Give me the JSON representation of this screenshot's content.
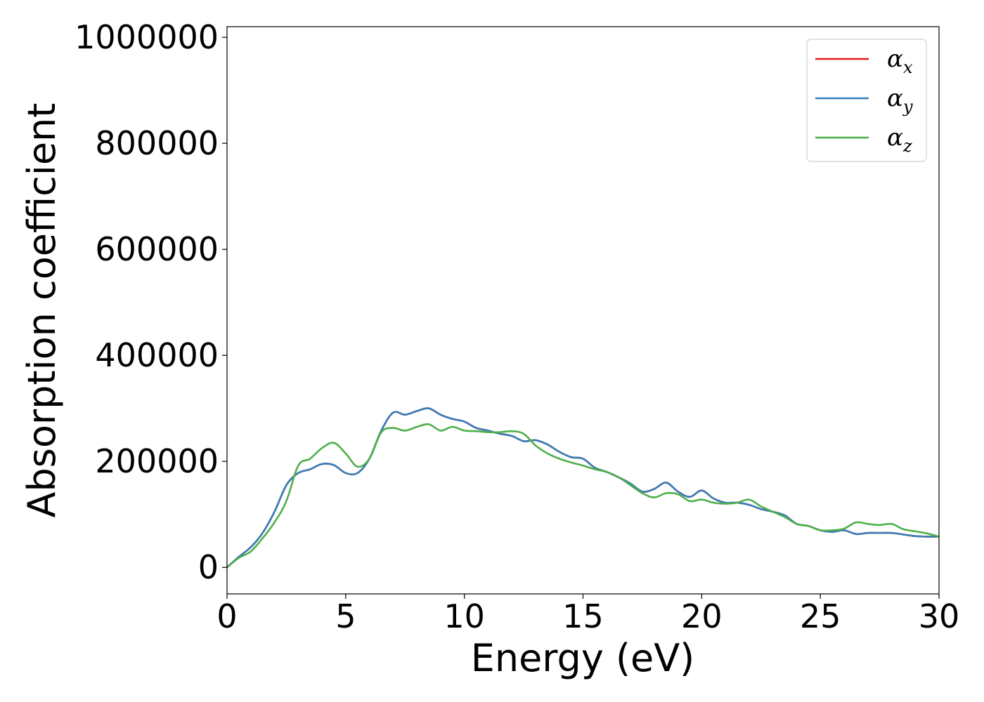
{
  "chart_data": {
    "type": "line",
    "xlabel": "Energy (eV)",
    "ylabel": "Absorption coefficient",
    "xlim": [
      0,
      30
    ],
    "ylim": [
      -50000,
      1020000
    ],
    "xticks": [
      0,
      5,
      10,
      15,
      20,
      25,
      30
    ],
    "yticks": [
      0,
      200000,
      400000,
      600000,
      800000,
      1000000
    ],
    "xtick_labels": [
      "0",
      "5",
      "10",
      "15",
      "20",
      "25",
      "30"
    ],
    "ytick_labels": [
      "0",
      "200000",
      "400000",
      "600000",
      "800000",
      "1000000"
    ],
    "grid": false,
    "legend_position": "top-right",
    "x": [
      0,
      0.5,
      1.0,
      1.5,
      2.0,
      2.5,
      3.0,
      3.5,
      4.0,
      4.5,
      5.0,
      5.5,
      6.0,
      6.5,
      7.0,
      7.5,
      8.0,
      8.5,
      9.0,
      9.5,
      10.0,
      10.5,
      11.0,
      11.5,
      12.0,
      12.5,
      13.0,
      13.5,
      14.0,
      14.5,
      15.0,
      15.5,
      16.0,
      16.5,
      17.0,
      17.5,
      18.0,
      18.5,
      19.0,
      19.5,
      20.0,
      20.5,
      21.0,
      21.5,
      22.0,
      22.5,
      23.0,
      23.5,
      24.0,
      24.5,
      25.0,
      25.5,
      26.0,
      26.5,
      27.0,
      27.5,
      28.0,
      28.5,
      29.0,
      29.5,
      30.0
    ],
    "series": [
      {
        "name": "x",
        "color": "#e41a1c",
        "values": [
          0,
          20000,
          38000,
          65000,
          105000,
          155000,
          178000,
          185000,
          195000,
          193000,
          178000,
          178000,
          205000,
          258000,
          292000,
          288000,
          295000,
          300000,
          288000,
          280000,
          275000,
          263000,
          258000,
          252000,
          248000,
          238000,
          240000,
          232000,
          218000,
          208000,
          205000,
          188000,
          180000,
          170000,
          158000,
          143000,
          148000,
          160000,
          143000,
          133000,
          145000,
          130000,
          122000,
          122000,
          118000,
          110000,
          105000,
          98000,
          82000,
          78000,
          70000,
          67000,
          70000,
          63000,
          65000,
          65000,
          65000,
          62000,
          59000,
          58000,
          58000
        ]
      },
      {
        "name": "y",
        "color": "#377eb8",
        "values": [
          0,
          20000,
          38000,
          65000,
          105000,
          155000,
          178000,
          185000,
          195000,
          193000,
          178000,
          178000,
          205000,
          258000,
          292000,
          288000,
          295000,
          300000,
          288000,
          280000,
          275000,
          263000,
          258000,
          252000,
          248000,
          238000,
          240000,
          232000,
          218000,
          208000,
          205000,
          188000,
          180000,
          170000,
          158000,
          143000,
          148000,
          160000,
          143000,
          133000,
          145000,
          130000,
          122000,
          122000,
          118000,
          110000,
          105000,
          98000,
          82000,
          78000,
          70000,
          67000,
          70000,
          63000,
          65000,
          65000,
          65000,
          62000,
          59000,
          58000,
          58000
        ]
      },
      {
        "name": "z",
        "color": "#4daf4a",
        "values": [
          0,
          18000,
          30000,
          55000,
          85000,
          125000,
          192000,
          205000,
          225000,
          235000,
          215000,
          190000,
          205000,
          255000,
          263000,
          258000,
          265000,
          270000,
          258000,
          265000,
          258000,
          257000,
          255000,
          255000,
          257000,
          252000,
          230000,
          215000,
          205000,
          198000,
          192000,
          185000,
          180000,
          170000,
          155000,
          140000,
          132000,
          140000,
          138000,
          125000,
          128000,
          122000,
          120000,
          122000,
          128000,
          115000,
          105000,
          95000,
          82000,
          78000,
          70000,
          70000,
          73000,
          85000,
          82000,
          80000,
          82000,
          72000,
          68000,
          64000,
          58000
        ]
      }
    ],
    "legend_entries": [
      {
        "symbol": "α",
        "subscript": "x",
        "color": "#e41a1c"
      },
      {
        "symbol": "α",
        "subscript": "y",
        "color": "#377eb8"
      },
      {
        "symbol": "α",
        "subscript": "z",
        "color": "#4daf4a"
      }
    ]
  }
}
